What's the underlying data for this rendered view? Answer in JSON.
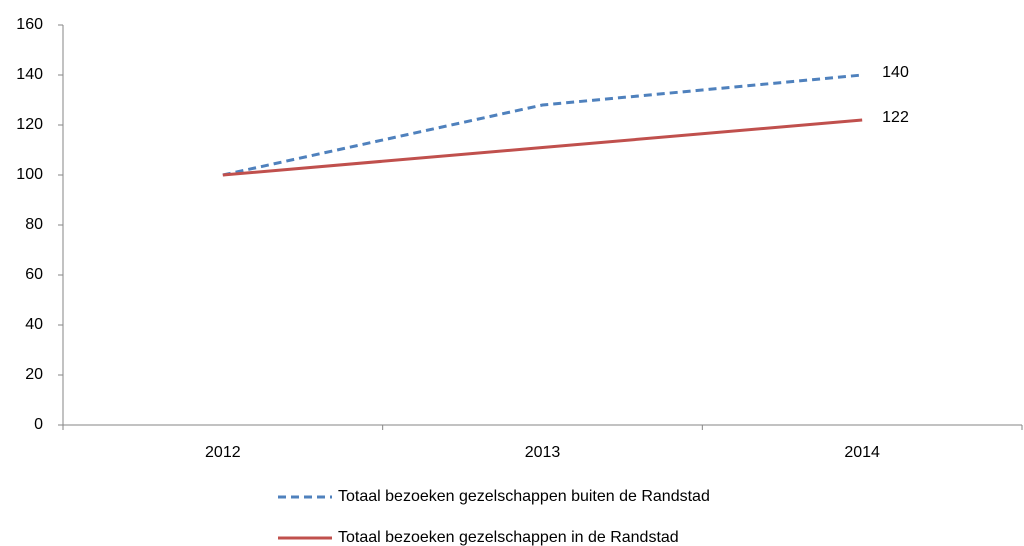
{
  "chart_data": {
    "type": "line",
    "categories": [
      "2012",
      "2013",
      "2014"
    ],
    "series": [
      {
        "name": "Totaal bezoeken gezelschappen buiten de Randstad",
        "color": "#4f81bd",
        "dashed": true,
        "values": [
          100,
          128,
          140
        ]
      },
      {
        "name": "Totaal bezoeken gezelschappen in de Randstad",
        "color": "#c0504d",
        "dashed": false,
        "values": [
          100,
          111,
          122
        ]
      }
    ],
    "label_last_point": true,
    "ylim": [
      0,
      160
    ],
    "yticks": [
      0,
      20,
      40,
      60,
      80,
      100,
      120,
      140,
      160
    ],
    "grid": false,
    "legend": "bottom"
  }
}
